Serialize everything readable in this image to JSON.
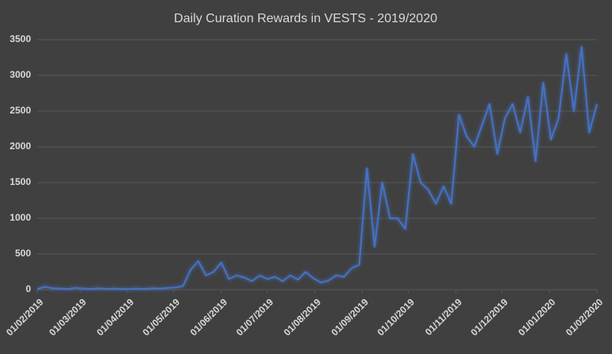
{
  "chart_data": {
    "type": "line",
    "title": "Daily Curation Rewards in VESTS - 2019/2020",
    "x": [
      "01/02/2019",
      "06/02/2019",
      "11/02/2019",
      "16/02/2019",
      "21/02/2019",
      "26/02/2019",
      "03/03/2019",
      "08/03/2019",
      "13/03/2019",
      "18/03/2019",
      "23/03/2019",
      "28/03/2019",
      "02/04/2019",
      "07/04/2019",
      "12/04/2019",
      "17/04/2019",
      "22/04/2019",
      "27/04/2019",
      "02/05/2019",
      "07/05/2019",
      "12/05/2019",
      "17/05/2019",
      "22/05/2019",
      "27/05/2019",
      "01/06/2019",
      "06/06/2019",
      "11/06/2019",
      "16/06/2019",
      "21/06/2019",
      "26/06/2019",
      "01/07/2019",
      "06/07/2019",
      "11/07/2019",
      "16/07/2019",
      "21/07/2019",
      "26/07/2019",
      "31/07/2019",
      "05/08/2019",
      "10/08/2019",
      "15/08/2019",
      "20/08/2019",
      "25/08/2019",
      "30/08/2019",
      "04/09/2019",
      "09/09/2019",
      "14/09/2019",
      "19/09/2019",
      "24/09/2019",
      "29/09/2019",
      "04/10/2019",
      "09/10/2019",
      "14/10/2019",
      "19/10/2019",
      "24/10/2019",
      "29/10/2019",
      "03/11/2019",
      "08/11/2019",
      "13/11/2019",
      "18/11/2019",
      "23/11/2019",
      "28/11/2019",
      "03/12/2019",
      "08/12/2019",
      "13/12/2019",
      "18/12/2019",
      "23/12/2019",
      "28/12/2019",
      "02/01/2020",
      "07/01/2020",
      "12/01/2020",
      "17/01/2020",
      "22/01/2020",
      "27/01/2020",
      "01/02/2020"
    ],
    "series": [
      {
        "color": "#4472c4",
        "values": [
          10,
          40,
          20,
          15,
          10,
          25,
          15,
          10,
          20,
          10,
          15,
          10,
          10,
          15,
          10,
          20,
          15,
          25,
          30,
          50,
          280,
          400,
          200,
          250,
          380,
          150,
          200,
          170,
          120,
          200,
          150,
          180,
          120,
          200,
          140,
          250,
          160,
          100,
          130,
          200,
          180,
          300,
          350,
          1700,
          600,
          1500,
          1000,
          1000,
          850,
          1900,
          1500,
          1400,
          1200,
          1450,
          1200,
          2450,
          2150,
          2000,
          2300,
          2600,
          1900,
          2400,
          2600,
          2200,
          2700,
          1800,
          2900,
          2100,
          2400,
          3300,
          2500,
          3400,
          2200,
          2600
        ]
      }
    ],
    "xlim": [
      "01/02/2019",
      "01/02/2020"
    ],
    "xticks": [
      "01/02/2019",
      "01/03/2019",
      "01/04/2019",
      "01/05/2019",
      "01/06/2019",
      "01/07/2019",
      "01/08/2019",
      "01/09/2019",
      "01/10/2019",
      "01/11/2019",
      "01/12/2019",
      "01/01/2020",
      "01/02/2020"
    ],
    "ylim": [
      0,
      3500
    ],
    "yticks": [
      0,
      500,
      1000,
      1500,
      2000,
      2500,
      3000,
      3500
    ],
    "grid": true
  }
}
